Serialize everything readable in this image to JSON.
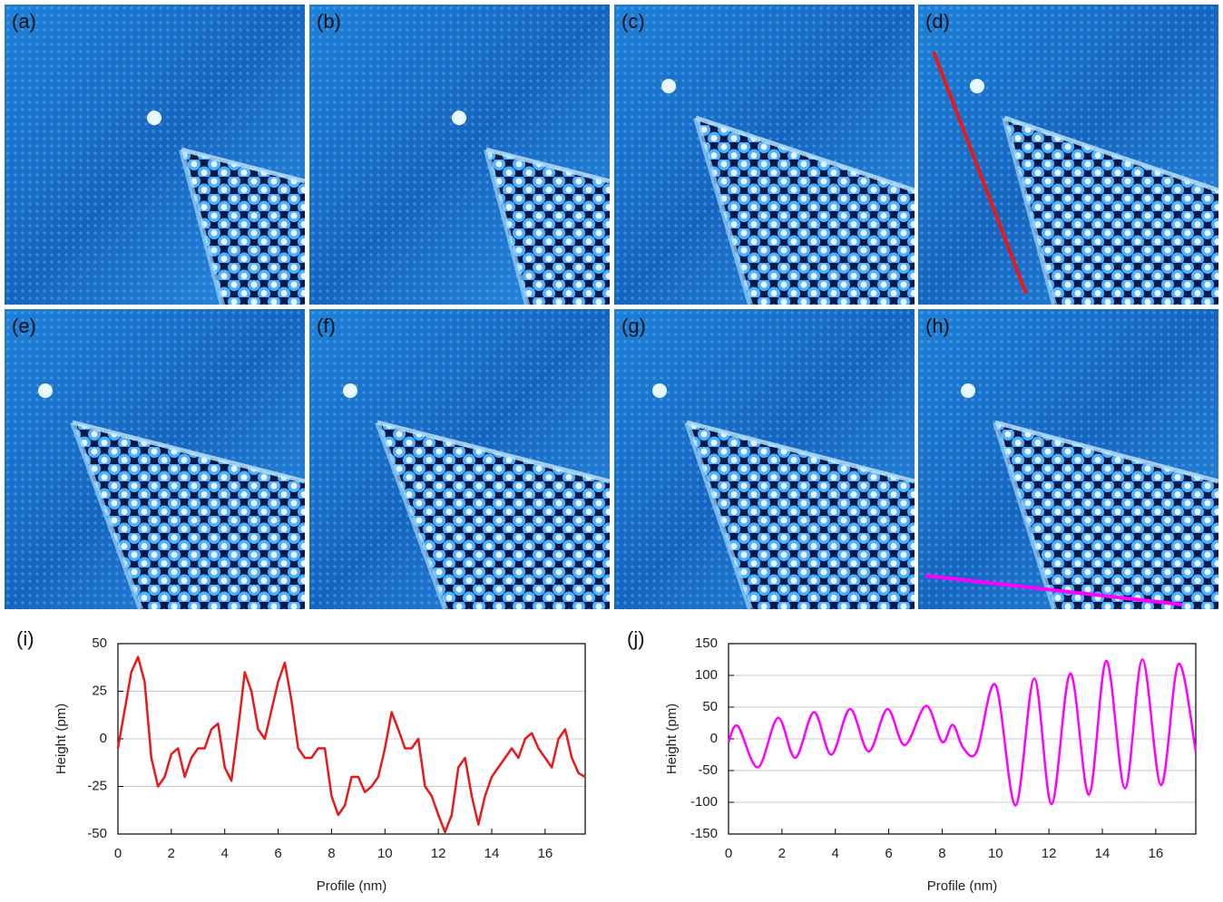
{
  "panels": [
    {
      "label": "(a)"
    },
    {
      "label": "(b)"
    },
    {
      "label": "(c)"
    },
    {
      "label": "(d)"
    },
    {
      "label": "(e)"
    },
    {
      "label": "(f)"
    },
    {
      "label": "(g)"
    },
    {
      "label": "(h)"
    }
  ],
  "chart_data": [
    {
      "type": "line",
      "panel_label": "(i)",
      "xlabel": "Profile (nm)",
      "ylabel": "Height (pm)",
      "x": [
        0,
        0.25,
        0.5,
        0.75,
        1,
        1.25,
        1.5,
        1.75,
        2,
        2.25,
        2.5,
        2.75,
        3,
        3.25,
        3.5,
        3.75,
        4,
        4.25,
        4.5,
        4.75,
        5,
        5.25,
        5.5,
        5.75,
        6,
        6.25,
        6.5,
        6.75,
        7,
        7.25,
        7.5,
        7.75,
        8,
        8.25,
        8.5,
        8.75,
        9,
        9.25,
        9.5,
        9.75,
        10,
        10.25,
        10.5,
        10.75,
        11,
        11.25,
        11.5,
        11.75,
        12,
        12.25,
        12.5,
        12.75,
        13,
        13.25,
        13.5,
        13.75,
        14,
        14.25,
        14.5,
        14.75,
        15,
        15.25,
        15.5,
        15.75,
        16,
        16.25,
        16.5,
        16.75,
        17,
        17.25,
        17.5
      ],
      "series": [
        {
          "color": "#e8191a",
          "values": [
            -5,
            15,
            35,
            43,
            30,
            -10,
            -25,
            -20,
            -8,
            -5,
            -20,
            -10,
            -5,
            -5,
            5,
            8,
            -15,
            -22,
            5,
            35,
            25,
            5,
            0,
            15,
            30,
            40,
            20,
            -5,
            -10,
            -10,
            -5,
            -5,
            -30,
            -40,
            -35,
            -20,
            -20,
            -28,
            -25,
            -20,
            -5,
            14,
            5,
            -5,
            -5,
            0,
            -25,
            -30,
            -40,
            -49,
            -40,
            -15,
            -10,
            -30,
            -45,
            -30,
            -20,
            -15,
            -10,
            -5,
            -10,
            0,
            3,
            -5,
            -10,
            -15,
            0,
            5,
            -10,
            -18,
            -20
          ]
        }
      ],
      "xlim": [
        0,
        17.5
      ],
      "ylim": [
        -50,
        50
      ],
      "xticks": [
        0,
        2,
        4,
        6,
        8,
        10,
        12,
        14,
        16
      ],
      "yticks": [
        -50,
        -25,
        0,
        25,
        50
      ],
      "grid": true
    },
    {
      "type": "line",
      "panel_label": "(j)",
      "xlabel": "Profile (nm)",
      "ylabel": "Height (pm)",
      "x": [
        0,
        0.35,
        1.1,
        1.85,
        2.5,
        3.2,
        3.85,
        4.55,
        5.25,
        5.95,
        6.6,
        7.4,
        8,
        8.4,
        8.8,
        9.3,
        10,
        10.75,
        11.45,
        12.1,
        12.8,
        13.5,
        14.15,
        14.85,
        15.5,
        16.2,
        16.85,
        17.5
      ],
      "series": [
        {
          "color": "#ff00ff",
          "values": [
            -5,
            20,
            -45,
            33,
            -30,
            42,
            -25,
            47,
            -20,
            47,
            -10,
            52,
            -5,
            22,
            -15,
            -20,
            85,
            -105,
            95,
            -103,
            103,
            -88,
            123,
            -78,
            125,
            -73,
            118,
            -20
          ]
        }
      ],
      "xlim": [
        0,
        17.5
      ],
      "ylim": [
        -150,
        150
      ],
      "xticks": [
        0,
        2,
        4,
        6,
        8,
        10,
        12,
        14,
        16
      ],
      "yticks": [
        -150,
        -100,
        -50,
        0,
        50,
        100,
        150
      ],
      "grid": true
    }
  ]
}
